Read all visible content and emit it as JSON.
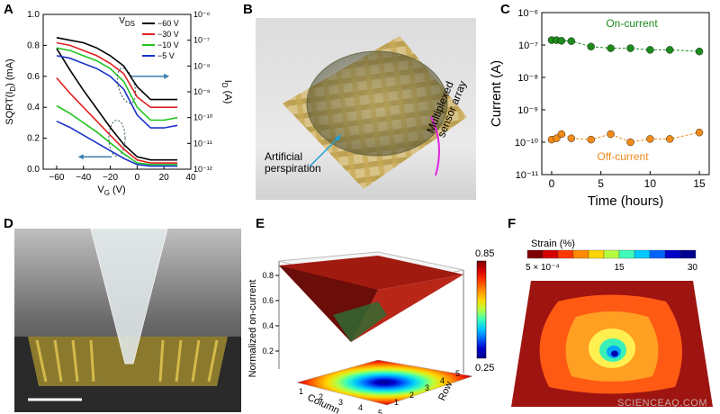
{
  "panels": {
    "A": {
      "label": "A"
    },
    "B": {
      "label": "B",
      "annotation_1": "Artificial\nperspiration",
      "annotation_2": "Multiplexed\nsensor array"
    },
    "C": {
      "label": "C"
    },
    "D": {
      "label": "D"
    },
    "E": {
      "label": "E"
    },
    "F": {
      "label": "F"
    }
  },
  "watermark": "SCIENCEAQ.COM",
  "chart_data": [
    {
      "id": "A",
      "type": "line",
      "xlabel": "V_G (V)",
      "ylabel_left": "SQRT(I_D) (mA)",
      "ylabel_right": "I_D (A)",
      "xlim": [
        -70,
        40
      ],
      "ylim_left": [
        0.0,
        1.0
      ],
      "ylim_right_log": [
        -12,
        -6
      ],
      "x_ticks": [
        -60,
        -40,
        -20,
        0,
        20,
        40
      ],
      "y_ticks_left": [
        "0.0",
        "0.2",
        "0.4",
        "0.6",
        "0.8",
        "1.0"
      ],
      "y_ticks_right": [
        "10⁻¹²",
        "10⁻¹¹",
        "10⁻¹⁰",
        "10⁻⁹",
        "10⁻⁸",
        "10⁻⁷",
        "10⁻⁶"
      ],
      "legend_title": "V_DS",
      "series": [
        {
          "name": "−60 V",
          "color": "#000000",
          "log_x": [
            -60,
            -50,
            -40,
            -30,
            -20,
            -10,
            0,
            10,
            20,
            30
          ],
          "log_y": [
            -6.9,
            -7.0,
            -7.1,
            -7.3,
            -7.6,
            -8.0,
            -8.8,
            -9.3,
            -9.3,
            -9.3
          ],
          "sqrt_x": [
            -60,
            -50,
            -40,
            -30,
            -20,
            -10,
            0,
            10,
            20,
            30
          ],
          "sqrt_y": [
            0.78,
            0.64,
            0.51,
            0.39,
            0.27,
            0.16,
            0.08,
            0.06,
            0.06,
            0.06
          ]
        },
        {
          "name": "−30 V",
          "color": "#e02020",
          "log_x": [
            -60,
            -50,
            -40,
            -30,
            -20,
            -10,
            0,
            10,
            20,
            30
          ],
          "log_y": [
            -7.1,
            -7.2,
            -7.4,
            -7.6,
            -7.9,
            -8.3,
            -9.2,
            -9.6,
            -9.6,
            -9.6
          ],
          "sqrt_x": [
            -60,
            -50,
            -40,
            -30,
            -20,
            -10,
            0,
            10,
            20,
            30
          ],
          "sqrt_y": [
            0.59,
            0.49,
            0.4,
            0.31,
            0.22,
            0.13,
            0.06,
            0.04,
            0.04,
            0.04
          ]
        },
        {
          "name": "−10 V",
          "color": "#22c422",
          "log_x": [
            -60,
            -50,
            -40,
            -30,
            -20,
            -10,
            0,
            10,
            20,
            30
          ],
          "log_y": [
            -7.3,
            -7.4,
            -7.6,
            -7.8,
            -8.1,
            -8.6,
            -9.6,
            -10.1,
            -10.1,
            -10.0
          ],
          "sqrt_x": [
            -60,
            -50,
            -40,
            -30,
            -20,
            -10,
            0,
            10,
            20,
            30
          ],
          "sqrt_y": [
            0.41,
            0.36,
            0.3,
            0.24,
            0.17,
            0.1,
            0.04,
            0.03,
            0.03,
            0.03
          ]
        },
        {
          "name": "−5 V",
          "color": "#1a33c9",
          "log_x": [
            -60,
            -50,
            -40,
            -30,
            -20,
            -10,
            0,
            10,
            20,
            30
          ],
          "log_y": [
            -7.6,
            -7.7,
            -7.9,
            -8.1,
            -8.4,
            -8.9,
            -9.9,
            -10.4,
            -10.4,
            -10.3
          ],
          "sqrt_x": [
            -60,
            -50,
            -40,
            -30,
            -20,
            -10,
            0,
            10,
            20,
            30
          ],
          "sqrt_y": [
            0.31,
            0.27,
            0.22,
            0.17,
            0.12,
            0.07,
            0.03,
            0.02,
            0.02,
            0.02
          ]
        }
      ]
    },
    {
      "id": "C",
      "type": "scatter",
      "xlabel": "Time (hours)",
      "ylabel": "Current (A)",
      "xlim": [
        -1,
        16
      ],
      "ylim_log": [
        -11,
        -6
      ],
      "x_ticks": [
        0,
        5,
        10,
        15
      ],
      "y_ticks": [
        "10⁻¹¹",
        "10⁻¹⁰",
        "10⁻⁹",
        "10⁻⁸",
        "10⁻⁷",
        "10⁻⁶"
      ],
      "series": [
        {
          "name": "On-current",
          "color": "#1e8a1e",
          "x": [
            0,
            0.5,
            1,
            2,
            4,
            6,
            8,
            10,
            12,
            15
          ],
          "log_y": [
            -6.85,
            -6.85,
            -6.87,
            -6.88,
            -7.05,
            -7.1,
            -7.1,
            -7.15,
            -7.15,
            -7.2
          ]
        },
        {
          "name": "Off-current",
          "color": "#f08a1a",
          "x": [
            0,
            0.5,
            1,
            2,
            4,
            6,
            8,
            10,
            12,
            15
          ],
          "log_y": [
            -9.92,
            -9.88,
            -9.75,
            -9.88,
            -9.92,
            -9.75,
            -10.0,
            -9.9,
            -9.9,
            -9.7
          ]
        }
      ]
    },
    {
      "id": "E",
      "type": "heatmap",
      "zlabel": "Normalized on-current",
      "xlabel": "Column",
      "ylabel": "Row",
      "z_ticks": [
        "0.2",
        "0.4",
        "0.6",
        "0.8"
      ],
      "colorbar_range": [
        0.25,
        0.85
      ],
      "colorbar_ticks": [
        "0.85",
        "0.25"
      ],
      "x_ticks": [
        "1",
        "2",
        "3",
        "4",
        "5"
      ],
      "y_ticks": [
        "1",
        "2",
        "3",
        "4",
        "5"
      ],
      "values": [
        [
          0.85,
          0.8,
          0.75,
          0.8,
          0.85
        ],
        [
          0.8,
          0.6,
          0.45,
          0.6,
          0.8
        ],
        [
          0.75,
          0.45,
          0.25,
          0.45,
          0.75
        ],
        [
          0.8,
          0.6,
          0.45,
          0.6,
          0.8
        ],
        [
          0.85,
          0.8,
          0.75,
          0.8,
          0.85
        ]
      ]
    },
    {
      "id": "F",
      "type": "heatmap",
      "title": "Strain (%)",
      "colorbar_ticks": [
        "5 × 10⁻⁴",
        "15",
        "30"
      ],
      "colorbar_range": [
        0.0005,
        30
      ]
    }
  ],
  "colors": {
    "jet": [
      "#7f0000",
      "#d40000",
      "#ff3a00",
      "#ff8c00",
      "#ffd500",
      "#b6ff40",
      "#3dffb9",
      "#00c8ff",
      "#0064ff",
      "#0000c8",
      "#00008f"
    ]
  }
}
